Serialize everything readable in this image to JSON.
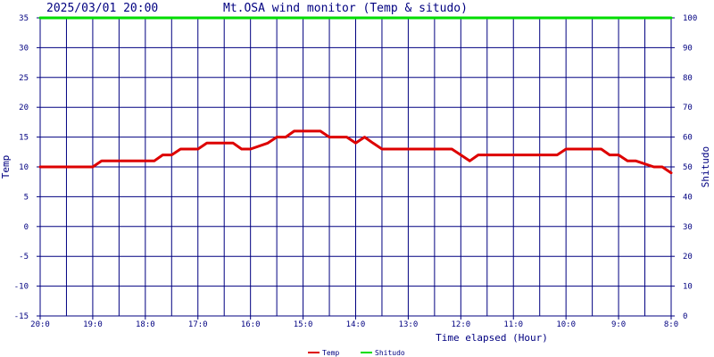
{
  "header": {
    "datetime": "2025/03/01 20:00",
    "title": "Mt.OSA wind monitor (Temp & situdo)"
  },
  "chart_data": {
    "type": "line",
    "title": "Mt.OSA wind monitor (Temp & situdo)",
    "xlabel": "Time elapsed (Hour)",
    "ylabel": "Temp",
    "y2label": "Shitudo",
    "ylim": [
      -15,
      35
    ],
    "y2lim": [
      0,
      100
    ],
    "yticks": [
      35,
      30,
      25,
      20,
      15,
      10,
      5,
      0,
      -5,
      -10,
      -15
    ],
    "y2ticks": [
      100,
      90,
      80,
      70,
      60,
      50,
      40,
      30,
      20,
      10,
      0
    ],
    "xlim": [
      0,
      12
    ],
    "xticks": [
      {
        "x": 0,
        "label": "20:0"
      },
      {
        "x": 1,
        "label": "19:0"
      },
      {
        "x": 2,
        "label": "18:0"
      },
      {
        "x": 3,
        "label": "17:0"
      },
      {
        "x": 4,
        "label": "16:0"
      },
      {
        "x": 5,
        "label": "15:0"
      },
      {
        "x": 6,
        "label": "14:0"
      },
      {
        "x": 7,
        "label": "13:0"
      },
      {
        "x": 8,
        "label": "12:0"
      },
      {
        "x": 9,
        "label": "11:0"
      },
      {
        "x": 10,
        "label": "10:0"
      },
      {
        "x": 11,
        "label": "9:0"
      },
      {
        "x": 12,
        "label": "8:0"
      }
    ],
    "grid": true,
    "legend_position": "bottom-center",
    "series": [
      {
        "name": "Temp",
        "color": "#dd0000",
        "axis": "left",
        "x": [
          0,
          0.25,
          0.5,
          0.75,
          1.0,
          1.17,
          1.5,
          2.0,
          2.17,
          2.33,
          2.5,
          2.67,
          2.83,
          3.0,
          3.17,
          3.5,
          3.67,
          3.83,
          4.0,
          4.33,
          4.5,
          4.67,
          4.83,
          5.0,
          5.33,
          5.5,
          5.83,
          6.0,
          6.17,
          6.33,
          6.5,
          6.67,
          7.0,
          7.5,
          7.83,
          8.0,
          8.17,
          8.33,
          9.0,
          9.5,
          9.83,
          10.0,
          10.5,
          10.67,
          10.83,
          11.0,
          11.17,
          11.33,
          11.67,
          11.83,
          12.0
        ],
        "y": [
          10,
          10,
          10,
          10,
          10,
          11,
          11,
          11,
          11,
          12,
          12,
          13,
          13,
          13,
          14,
          14,
          14,
          13,
          13,
          14,
          15,
          15,
          16,
          16,
          16,
          15,
          15,
          14,
          15,
          14,
          13,
          13,
          13,
          13,
          13,
          12,
          11,
          12,
          12,
          12,
          12,
          13,
          13,
          13,
          12,
          12,
          11,
          11,
          10,
          10,
          9
        ]
      },
      {
        "name": "Shitudo",
        "color": "#00dd00",
        "axis": "right",
        "x": [
          0,
          12
        ],
        "y": [
          100,
          100
        ]
      }
    ]
  }
}
